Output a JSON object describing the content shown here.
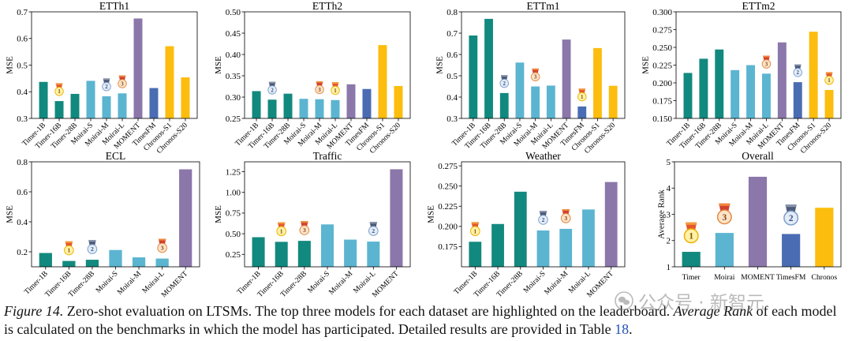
{
  "caption": {
    "label": "Figure 14.",
    "text_1": "Zero-shot evaluation on LTSMs. The top three models for each dataset are highlighted on the leaderboard.",
    "emphasis": "Average Rank",
    "text_2": "of each model is calculated on the benchmarks in which the model has participated. Detailed results are provided in Table",
    "table_ref": "18",
    "text_3": "."
  },
  "watermark": "公众号 · 新智元",
  "chart_data": [
    {
      "type": "bar",
      "title": "ETTh1",
      "xlabel": "",
      "ylabel": "MSE",
      "categories": [
        "Timer-1B",
        "Timer-16B",
        "Timer-28B",
        "Moirai-S",
        "Moirai-M",
        "Moirai-L",
        "MOMENT",
        "TimesFM",
        "Chronos-S1",
        "Chronos-S20"
      ],
      "values": [
        0.437,
        0.365,
        0.392,
        0.441,
        0.383,
        0.394,
        0.675,
        0.414,
        0.571,
        0.454
      ],
      "medals": [
        null,
        1,
        null,
        null,
        2,
        3,
        null,
        null,
        null,
        null
      ],
      "ylim": [
        0.3,
        0.7
      ],
      "yticks": [
        "0.3",
        "0.4",
        "0.5",
        "0.6",
        "0.7"
      ],
      "grid": false,
      "bar_colors": [
        "#12897e",
        "#12897e",
        "#12897e",
        "#5bb5d1",
        "#5bb5d1",
        "#5bb5d1",
        "#8b77aa",
        "#4a6cb3",
        "#fcbd0e",
        "#fcbd0e"
      ]
    },
    {
      "type": "bar",
      "title": "ETTh2",
      "xlabel": "",
      "ylabel": "MSE",
      "categories": [
        "Timer-1B",
        "Timer-16B",
        "Timer-28B",
        "Moirai-S",
        "Moirai-M",
        "Moirai-L",
        "MOMENT",
        "TimesFM",
        "Chronos-S1",
        "Chronos-S20"
      ],
      "values": [
        0.314,
        0.294,
        0.308,
        0.296,
        0.295,
        0.293,
        0.33,
        0.319,
        0.422,
        0.326
      ],
      "medals": [
        null,
        2,
        null,
        null,
        3,
        1,
        null,
        null,
        null,
        null
      ],
      "ylim": [
        0.25,
        0.5
      ],
      "yticks": [
        "0.25",
        "0.30",
        "0.35",
        "0.40",
        "0.45",
        "0.50"
      ],
      "grid": false,
      "bar_colors": [
        "#12897e",
        "#12897e",
        "#12897e",
        "#5bb5d1",
        "#5bb5d1",
        "#5bb5d1",
        "#8b77aa",
        "#4a6cb3",
        "#fcbd0e",
        "#fcbd0e"
      ]
    },
    {
      "type": "bar",
      "title": "ETTm1",
      "xlabel": "",
      "ylabel": "MSE",
      "categories": [
        "Timer-1B",
        "Timer-16B",
        "Timer-28B",
        "Moirai-S",
        "Moirai-M",
        "Moirai-L",
        "MOMENT",
        "TimesFM",
        "Chronos-S1",
        "Chronos-S20"
      ],
      "values": [
        0.689,
        0.767,
        0.419,
        0.562,
        0.45,
        0.454,
        0.67,
        0.356,
        0.63,
        0.453
      ],
      "medals": [
        null,
        null,
        2,
        null,
        3,
        null,
        null,
        1,
        null,
        null
      ],
      "ylim": [
        0.3,
        0.8
      ],
      "yticks": [
        "0.3",
        "0.4",
        "0.5",
        "0.6",
        "0.7",
        "0.8"
      ],
      "grid": false,
      "bar_colors": [
        "#12897e",
        "#12897e",
        "#12897e",
        "#5bb5d1",
        "#5bb5d1",
        "#5bb5d1",
        "#8b77aa",
        "#4a6cb3",
        "#fcbd0e",
        "#fcbd0e"
      ]
    },
    {
      "type": "bar",
      "title": "ETTm2",
      "xlabel": "",
      "ylabel": "MSE",
      "categories": [
        "Timer-1B",
        "Timer-16B",
        "Timer-28B",
        "Moirai-S",
        "Moirai-M",
        "Moirai-L",
        "MOMENT",
        "TimesFM",
        "Chronos-S1",
        "Chronos-S20"
      ],
      "values": [
        0.214,
        0.234,
        0.247,
        0.218,
        0.225,
        0.213,
        0.257,
        0.201,
        0.272,
        0.19
      ],
      "medals": [
        null,
        null,
        null,
        null,
        null,
        3,
        null,
        2,
        null,
        1
      ],
      "ylim": [
        0.15,
        0.3
      ],
      "yticks": [
        "0.150",
        "0.175",
        "0.200",
        "0.225",
        "0.250",
        "0.275",
        "0.300"
      ],
      "grid": false,
      "bar_colors": [
        "#12897e",
        "#12897e",
        "#12897e",
        "#5bb5d1",
        "#5bb5d1",
        "#5bb5d1",
        "#8b77aa",
        "#4a6cb3",
        "#fcbd0e",
        "#fcbd0e"
      ]
    },
    {
      "type": "bar",
      "title": "ECL",
      "xlabel": "",
      "ylabel": "MSE",
      "categories": [
        "Timer-1B",
        "Timer-16B",
        "Timer-28B",
        "Moirai-S",
        "Moirai-M",
        "Moirai-L",
        "MOMENT"
      ],
      "values": [
        0.192,
        0.139,
        0.147,
        0.212,
        0.163,
        0.155,
        0.75
      ],
      "medals": [
        null,
        1,
        2,
        null,
        null,
        3,
        null
      ],
      "ylim": [
        0.1,
        0.8
      ],
      "yticks": [
        "0.2",
        "0.4",
        "0.6",
        "0.8"
      ],
      "grid": false,
      "bar_colors": [
        "#12897e",
        "#12897e",
        "#12897e",
        "#5bb5d1",
        "#5bb5d1",
        "#5bb5d1",
        "#8b77aa"
      ]
    },
    {
      "type": "bar",
      "title": "Traffic",
      "xlabel": "",
      "ylabel": "MSE",
      "categories": [
        "Timer-1B",
        "Timer-16B",
        "Timer-28B",
        "Moirai-S",
        "Moirai-M",
        "Moirai-L",
        "MOMENT"
      ],
      "values": [
        0.458,
        0.402,
        0.414,
        0.613,
        0.429,
        0.405,
        1.28
      ],
      "medals": [
        null,
        1,
        3,
        null,
        null,
        2,
        null
      ],
      "ylim": [
        0.1,
        1.37
      ],
      "yticks": [
        "0.25",
        "0.50",
        "0.75",
        "1.00",
        "1.25"
      ],
      "grid": false,
      "bar_colors": [
        "#12897e",
        "#12897e",
        "#12897e",
        "#5bb5d1",
        "#5bb5d1",
        "#5bb5d1",
        "#8b77aa"
      ]
    },
    {
      "type": "bar",
      "title": "Weather",
      "xlabel": "",
      "ylabel": "MSE",
      "categories": [
        "Timer-1B",
        "Timer-16B",
        "Timer-28B",
        "Moirai-S",
        "Moirai-M",
        "Moirai-L",
        "MOMENT"
      ],
      "values": [
        0.181,
        0.203,
        0.243,
        0.195,
        0.197,
        0.221,
        0.255
      ],
      "medals": [
        1,
        null,
        null,
        2,
        3,
        null,
        null
      ],
      "ylim": [
        0.15,
        0.28
      ],
      "yticks": [
        "0.175",
        "0.200",
        "0.225",
        "0.250",
        "0.275"
      ],
      "grid": false,
      "bar_colors": [
        "#12897e",
        "#12897e",
        "#12897e",
        "#5bb5d1",
        "#5bb5d1",
        "#5bb5d1",
        "#8b77aa"
      ]
    },
    {
      "type": "bar",
      "title": "Overall",
      "xlabel": "",
      "ylabel": "Average Rank",
      "categories": [
        "Timer",
        "Moirai",
        "MOMENT",
        "TimesFM",
        "Chronos"
      ],
      "values": [
        1.57,
        2.29,
        4.43,
        2.25,
        3.25
      ],
      "medals": [
        1,
        3,
        null,
        2,
        null
      ],
      "ylim": [
        1,
        5
      ],
      "yticks": [
        "1",
        "2",
        "3",
        "4",
        "5"
      ],
      "grid": false,
      "bar_colors": [
        "#12897e",
        "#5bb5d1",
        "#8b77aa",
        "#4a6cb3",
        "#fcbd0e"
      ]
    }
  ]
}
